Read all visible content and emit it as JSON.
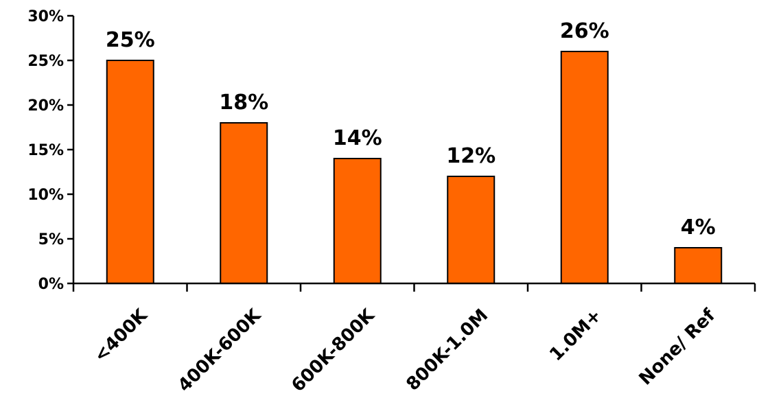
{
  "chart_data": {
    "type": "bar",
    "categories": [
      "<400K",
      "400K-600K",
      "600K-800K",
      "800K-1.0M",
      "1.0M+",
      "None/ Ref"
    ],
    "values": [
      25,
      18,
      14,
      12,
      26,
      4
    ],
    "data_labels": [
      "25%",
      "18%",
      "14%",
      "12%",
      "26%",
      "4%"
    ],
    "title": "",
    "xlabel": "",
    "ylabel": "",
    "ylim": [
      0,
      30
    ],
    "yticks": [
      0,
      5,
      10,
      15,
      20,
      25,
      30
    ],
    "ytick_labels": [
      "0%",
      "5%",
      "10%",
      "15%",
      "20%",
      "25%",
      "30%"
    ],
    "grid": false,
    "legend": "none",
    "bar_color": "#FF6600",
    "bar_edge_color": "#000000"
  }
}
